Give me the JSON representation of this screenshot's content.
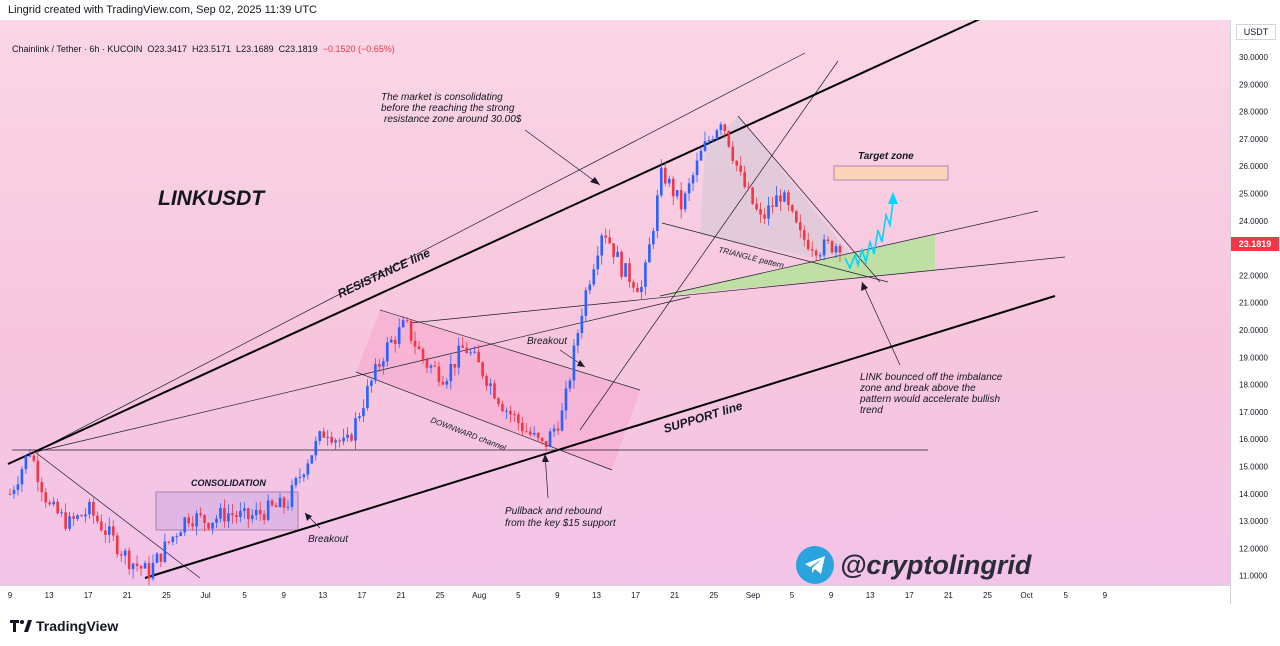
{
  "header": {
    "credit": "Lingrid created with TradingView.com, Sep 02, 2025 11:39 UTC"
  },
  "symbol_info": {
    "name": "Chainlink / Tether · 6h · KUCOIN",
    "open_label": "O",
    "open": "23.3417",
    "high_label": "H",
    "high": "23.5171",
    "low_label": "L",
    "low": "23.1689",
    "close_label": "C",
    "close": "23.1819",
    "change": "−0.1520 (−0.65%)"
  },
  "price_axis": {
    "currency": "USDT",
    "current_price": "23.1819",
    "ticks": [
      "30.0000",
      "29.0000",
      "28.0000",
      "27.0000",
      "26.0000",
      "25.0000",
      "24.0000",
      "23.0000",
      "22.0000",
      "21.0000",
      "20.0000",
      "19.0000",
      "18.0000",
      "17.0000",
      "16.0000",
      "15.0000",
      "14.0000",
      "13.0000",
      "12.0000",
      "11.0000"
    ]
  },
  "time_axis": {
    "ticks": [
      "9",
      "13",
      "17",
      "21",
      "25",
      "Jul",
      "5",
      "9",
      "13",
      "17",
      "21",
      "25",
      "Aug",
      "5",
      "9",
      "13",
      "17",
      "21",
      "25",
      "Sep",
      "5",
      "9",
      "13",
      "17",
      "21",
      "25",
      "Oct",
      "5",
      "9"
    ]
  },
  "chart_data": {
    "type": "candlestick",
    "symbol": "LINKUSDT",
    "exchange": "KUCOIN",
    "timeframe": "6h",
    "ylim": [
      10.9,
      31.0
    ],
    "x": [
      "Jun 9",
      "Jun 11",
      "Jun 13",
      "Jun 15",
      "Jun 17",
      "Jun 19",
      "Jun 21",
      "Jun 22",
      "Jun 23",
      "Jun 25",
      "Jun 28",
      "Jul 1",
      "Jul 4",
      "Jul 7",
      "Jul 9",
      "Jul 11",
      "Jul 13",
      "Jul 15",
      "Jul 17",
      "Jul 18",
      "Jul 20",
      "Jul 22",
      "Jul 24",
      "Jul 27",
      "Jul 29",
      "Aug 1",
      "Aug 3",
      "Aug 5",
      "Aug 7",
      "Aug 9",
      "Aug 11",
      "Aug 13",
      "Aug 15",
      "Aug 17",
      "Aug 19",
      "Aug 21",
      "Aug 22",
      "Aug 24",
      "Aug 26",
      "Aug 28",
      "Aug 30",
      "Sep 1",
      "Sep 2"
    ],
    "close": [
      14.0,
      15.6,
      13.5,
      12.9,
      13.4,
      12.5,
      11.6,
      11.1,
      12.2,
      13.2,
      13.0,
      13.3,
      13.1,
      13.4,
      13.6,
      15.2,
      16.4,
      15.7,
      17.6,
      19.3,
      20.2,
      18.8,
      18.3,
      19.4,
      18.4,
      17.2,
      16.4,
      15.7,
      17.0,
      21.0,
      23.8,
      22.2,
      21.5,
      25.8,
      24.5,
      26.5,
      27.8,
      25.5,
      24.0,
      25.0,
      23.4,
      23.0,
      23.18
    ],
    "annotations": [
      "LINKUSDT",
      "RESISTANCE line",
      "SUPPORT line",
      "CONSOLIDATION",
      "Breakout",
      "DOWNWARD channel",
      "TRIANGLE pattern",
      "Target zone",
      "Pullback and rebound from the key $15 support",
      "LINK bounced off the imbalance zone and break above the pattern would accelerate bullish trend",
      "The market is consolidating before the reaching the strong resistance zone around 30.00$"
    ]
  },
  "labels": {
    "title": "LINKUSDT",
    "resistance": "RESISTANCE line",
    "support": "SUPPORT line",
    "consolidation": "CONSOLIDATION",
    "breakout1": "Breakout",
    "breakout2": "Breakout",
    "downward": "DOWNWARD channel",
    "triangle": "TRIANGLE pattern",
    "target": "Target zone",
    "pullback_1": "Pullback and rebound",
    "pullback_2": "from the key $15 support",
    "bounce_1": "LINK bounced off the imbalance",
    "bounce_2": "zone and break above the",
    "bounce_3": "pattern would accelerate bullish",
    "bounce_4": "trend",
    "market_1": "The market is consolidating",
    "market_2": "before the reaching the strong",
    "market_3": "resistance zone around 30.00$"
  },
  "watermark": {
    "handle": "@cryptolingrid",
    "icon": "telegram-icon"
  },
  "footer": {
    "brand": "TradingView",
    "icon": "tradingview-logo-icon"
  },
  "colors": {
    "up": "#2962ff",
    "down": "#f23645",
    "ray": "#000000",
    "zone_green": "#b5e39a",
    "target": "#fad4b8",
    "path": "#00d6ff"
  }
}
